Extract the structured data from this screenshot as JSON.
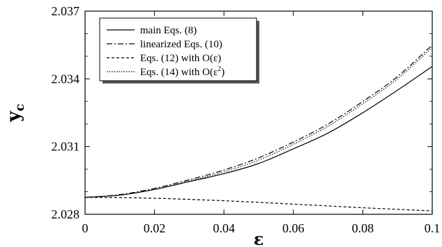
{
  "chart_data": {
    "type": "line",
    "title": "",
    "xlabel": "ε",
    "ylabel_main": "y",
    "ylabel_sub": "c",
    "xlim": [
      0,
      0.1
    ],
    "ylim": [
      2.028,
      2.037
    ],
    "x_ticks": [
      0,
      0.02,
      0.04,
      0.06,
      0.08,
      0.1
    ],
    "x_tick_labels": [
      "0",
      "0.02",
      "0.04",
      "0.06",
      "0.08",
      "0.1"
    ],
    "y_ticks": [
      2.028,
      2.031,
      2.034,
      2.037
    ],
    "y_tick_labels": [
      "2.028",
      "2.031",
      "2.034",
      "2.037"
    ],
    "grid": false,
    "legend_position": "top-left",
    "legend": [
      {
        "text": "main Eqs. (8)",
        "style": "solid",
        "sup": ""
      },
      {
        "text": "linearized Eqs. (10)",
        "style": "dashdot",
        "sup": ""
      },
      {
        "text": "Eqs. (12) with O(ε)",
        "style": "dashed",
        "sup": ""
      },
      {
        "text": "Eqs. (14) with O(ε",
        "style": "dotted",
        "sup": "2",
        "suffix": ")"
      }
    ],
    "x": [
      0,
      0.01,
      0.02,
      0.03,
      0.04,
      0.05,
      0.06,
      0.07,
      0.08,
      0.09,
      0.1
    ],
    "series": [
      {
        "name": "main Eqs. (8)",
        "style": "solid",
        "values": [
          2.02875,
          2.02885,
          2.0291,
          2.02945,
          2.0298,
          2.03025,
          2.0309,
          2.0316,
          2.0325,
          2.0335,
          2.03455
        ]
      },
      {
        "name": "linearized Eqs. (10)",
        "style": "dashdot",
        "values": [
          2.02875,
          2.02887,
          2.02915,
          2.02953,
          2.02996,
          2.0305,
          2.0312,
          2.032,
          2.033,
          2.0341,
          2.0355
        ]
      },
      {
        "name": "Eqs. (12) with O(ε)",
        "style": "dashed",
        "values": [
          2.02875,
          2.02874,
          2.02871,
          2.02866,
          2.0286,
          2.02853,
          2.02845,
          2.02837,
          2.02829,
          2.02822,
          2.02815
        ]
      },
      {
        "name": "Eqs. (14) with O(ε²)",
        "style": "dotted",
        "values": [
          2.02875,
          2.02885,
          2.0291,
          2.02947,
          2.02988,
          2.0304,
          2.0311,
          2.0319,
          2.0329,
          2.034,
          2.0354
        ]
      }
    ]
  }
}
